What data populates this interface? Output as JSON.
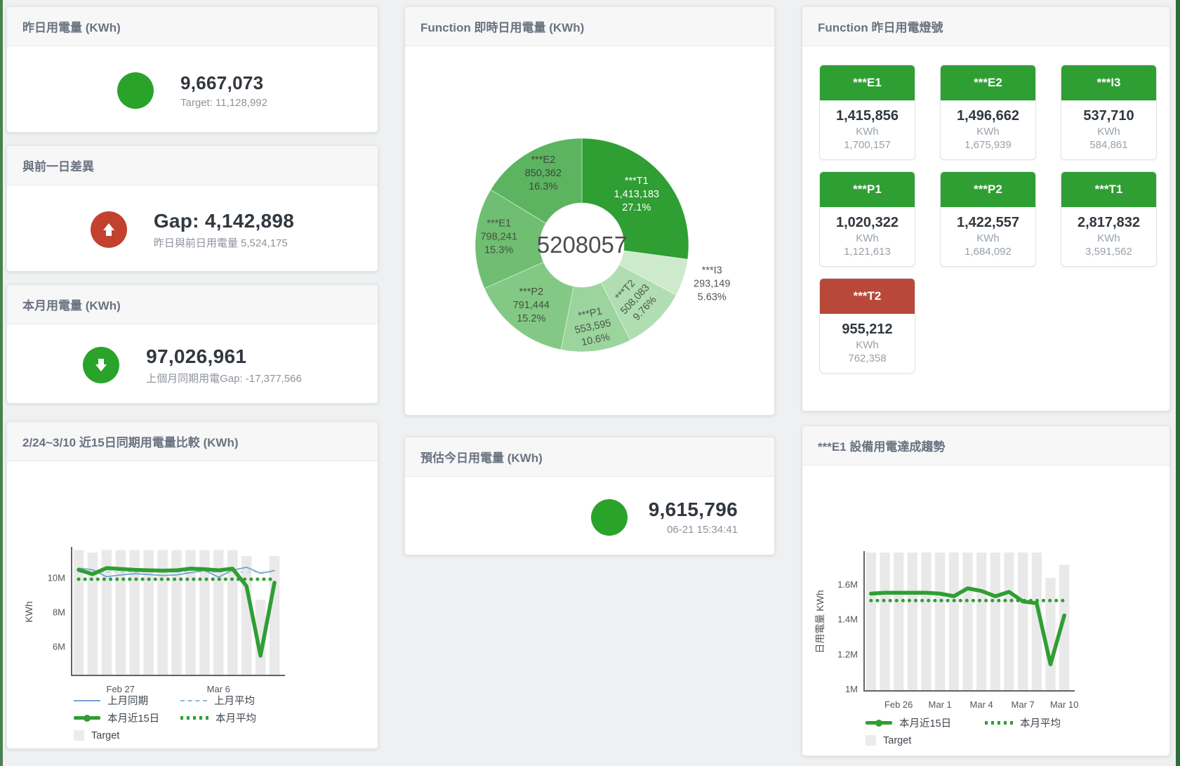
{
  "colors": {
    "green": "#2f9e33",
    "red": "#b8493a",
    "circle_green": "#2aa32a",
    "circle_red": "#c2422f",
    "blue": "#76a3cf",
    "blue_dash": "#8fb8dd",
    "bar_gray": "#e9e9ea",
    "edge_left": "#49814f",
    "edge_right": "#2f6d38"
  },
  "cards": {
    "yesterday": {
      "title": "昨日用電量 (KWh)",
      "value": "9,667,073",
      "subtitle": "Target: 11,128,992"
    },
    "gap": {
      "title": "與前一日差異",
      "value": "Gap: 4,142,898",
      "subtitle": "昨日與前日用電量 5,524,175"
    },
    "month": {
      "title": "本月用電量 (KWh)",
      "value": "97,026,961",
      "subtitle": "上個月同期用電Gap: -17,377,566"
    },
    "estimate": {
      "title": "預估今日用電量 (KWh)",
      "value": "9,615,796",
      "subtitle": "06-21 15:34:41"
    }
  },
  "lights": {
    "title": "Function 昨日用電燈號",
    "tiles": [
      {
        "name": "***E1",
        "value": "1,415,856",
        "unit": "KWh",
        "target": "1,700,157",
        "status": "green"
      },
      {
        "name": "***E2",
        "value": "1,496,662",
        "unit": "KWh",
        "target": "1,675,939",
        "status": "green"
      },
      {
        "name": "***I3",
        "value": "537,710",
        "unit": "KWh",
        "target": "584,861",
        "status": "green"
      },
      {
        "name": "***P1",
        "value": "1,020,322",
        "unit": "KWh",
        "target": "1,121,613",
        "status": "green"
      },
      {
        "name": "***P2",
        "value": "1,422,557",
        "unit": "KWh",
        "target": "1,684,092",
        "status": "green"
      },
      {
        "name": "***T1",
        "value": "2,817,832",
        "unit": "KWh",
        "target": "3,591,562",
        "status": "green"
      },
      {
        "name": "***T2",
        "value": "955,212",
        "unit": "KWh",
        "target": "762,358",
        "status": "red"
      }
    ]
  },
  "chart_data": [
    {
      "id": "realtime-donut",
      "type": "pie",
      "title": "Function 即時日用電量 (KWh)",
      "center_label": "5208057",
      "unit": "KWh",
      "legend_position": "none",
      "slices": [
        {
          "name": "***T1",
          "value": 1413183,
          "pct": "27.1%",
          "color": "#2f9e33",
          "label_color": "#ffffff",
          "label_r": 0.68,
          "rotate": 0
        },
        {
          "name": "***I3",
          "value": 293149,
          "pct": "5.63%",
          "color": "#cdeacd",
          "label_color": "#555555",
          "label_r": 1.28,
          "rotate": 0,
          "outside": true
        },
        {
          "name": "***T2",
          "value": 508083,
          "pct": "9.76%",
          "color": "#b0deb2",
          "label_color": "#4a564a",
          "label_r": 0.74,
          "rotate": -47
        },
        {
          "name": "***P1",
          "value": 553595,
          "pct": "10.6%",
          "color": "#9bd49d",
          "label_color": "#4a564a",
          "label_r": 0.8,
          "rotate": -12
        },
        {
          "name": "***P2",
          "value": 791444,
          "pct": "15.2%",
          "color": "#83c985",
          "label_color": "#45513f",
          "label_r": 0.76,
          "rotate": 0
        },
        {
          "name": "***E1",
          "value": 798241,
          "pct": "15.3%",
          "color": "#6fbe72",
          "label_color": "#45513f",
          "label_r": 0.78,
          "rotate": 0
        },
        {
          "name": "***E2",
          "value": 850362,
          "pct": "16.3%",
          "color": "#5cb360",
          "label_color": "#3d493d",
          "label_r": 0.74,
          "rotate": 0
        }
      ]
    },
    {
      "id": "compare-15d",
      "type": "line+bar",
      "title": "2/24~3/10 近15日同期用電量比較 (KWh)",
      "ylabel": "KWh",
      "unit": "M",
      "grid": false,
      "legend_position": "bottom",
      "categories": [
        "Feb 24",
        "Feb 25",
        "Feb 26",
        "Feb 27",
        "Feb 28",
        "Mar 1",
        "Mar 2",
        "Mar 3",
        "Mar 4",
        "Mar 5",
        "Mar 6",
        "Mar 7",
        "Mar 8",
        "Mar 9",
        "Mar 10"
      ],
      "ylim": [
        4.3,
        11.7
      ],
      "yticks": [
        {
          "v": 6,
          "label": "6M"
        },
        {
          "v": 8,
          "label": "8M"
        },
        {
          "v": 10,
          "label": "10M"
        }
      ],
      "xticks": [
        {
          "i": 3,
          "label": "Feb 27"
        },
        {
          "i": 10,
          "label": "Mar 6"
        }
      ],
      "bar_color": "#e9e9ea",
      "target_bars": [
        11.6,
        11.45,
        11.6,
        11.6,
        11.6,
        11.6,
        11.6,
        11.6,
        11.6,
        11.6,
        11.6,
        11.6,
        11.25,
        8.7,
        11.25
      ],
      "series": [
        {
          "name": "上月同期",
          "style": "line",
          "color": "#76a3cf",
          "width": 1.8,
          "values": [
            10.55,
            10.45,
            10.05,
            10.15,
            10.22,
            10.18,
            10.12,
            10.15,
            10.28,
            10.42,
            10.02,
            10.42,
            10.6,
            10.25,
            10.4
          ]
        },
        {
          "name": "上月平均",
          "style": "dashed",
          "color": "#8fb8dd",
          "width": 2,
          "value": 10.32
        },
        {
          "name": "本月近15日",
          "style": "line",
          "color": "#2f9e33",
          "width": 5.5,
          "values": [
            10.45,
            10.2,
            10.55,
            10.5,
            10.45,
            10.42,
            10.4,
            10.42,
            10.52,
            10.48,
            10.42,
            10.52,
            9.5,
            5.45,
            9.7
          ]
        },
        {
          "name": "本月平均",
          "style": "dotted",
          "color": "#2f9e33",
          "width": 5,
          "value": 9.9
        }
      ],
      "legend": [
        {
          "swatch": "line-blue",
          "label": "上月同期"
        },
        {
          "swatch": "dash-blue",
          "label": "上月平均"
        },
        {
          "swatch": "line-green",
          "label": "本月近15日"
        },
        {
          "swatch": "dot-green",
          "label": "本月平均"
        },
        {
          "swatch": "square-gray",
          "label": "Target"
        }
      ]
    },
    {
      "id": "e1-trend",
      "type": "line+bar",
      "title": "***E1 設備用電達成趨勢",
      "ylabel": "日用電量 KWh",
      "unit": "M",
      "grid": false,
      "legend_position": "bottom",
      "categories": [
        "Feb 24",
        "Feb 25",
        "Feb 26",
        "Feb 27",
        "Feb 28",
        "Mar 1",
        "Mar 2",
        "Mar 3",
        "Mar 4",
        "Mar 5",
        "Mar 6",
        "Mar 7",
        "Mar 8",
        "Mar 9",
        "Mar 10"
      ],
      "ylim": [
        0.988,
        1.78
      ],
      "yticks": [
        {
          "v": 1,
          "label": "1M"
        },
        {
          "v": 1.2,
          "label": "1.2M"
        },
        {
          "v": 1.4,
          "label": "1.4M"
        },
        {
          "v": 1.6,
          "label": "1.6M"
        }
      ],
      "xticks": [
        {
          "i": 2,
          "label": "Feb 26"
        },
        {
          "i": 5,
          "label": "Mar 1"
        },
        {
          "i": 8,
          "label": "Mar 4"
        },
        {
          "i": 11,
          "label": "Mar 7"
        },
        {
          "i": 14,
          "label": "Mar 10"
        }
      ],
      "bar_color": "#e9e9ea",
      "target_bars": [
        1.78,
        1.78,
        1.78,
        1.78,
        1.78,
        1.78,
        1.78,
        1.78,
        1.78,
        1.78,
        1.78,
        1.78,
        1.78,
        1.635,
        1.71
      ],
      "series": [
        {
          "name": "本月近15日",
          "style": "line",
          "color": "#2f9e33",
          "width": 5.5,
          "values": [
            1.545,
            1.55,
            1.55,
            1.55,
            1.55,
            1.545,
            1.53,
            1.575,
            1.56,
            1.53,
            1.555,
            1.5,
            1.49,
            1.14,
            1.42
          ]
        },
        {
          "name": "本月平均",
          "style": "dotted",
          "color": "#2f9e33",
          "width": 5,
          "value": 1.505
        }
      ],
      "legend": [
        {
          "swatch": "line-green",
          "label": "本月近15日"
        },
        {
          "swatch": "dot-green",
          "label": "本月平均"
        },
        {
          "swatch": "square-gray",
          "label": "Target"
        }
      ]
    }
  ]
}
